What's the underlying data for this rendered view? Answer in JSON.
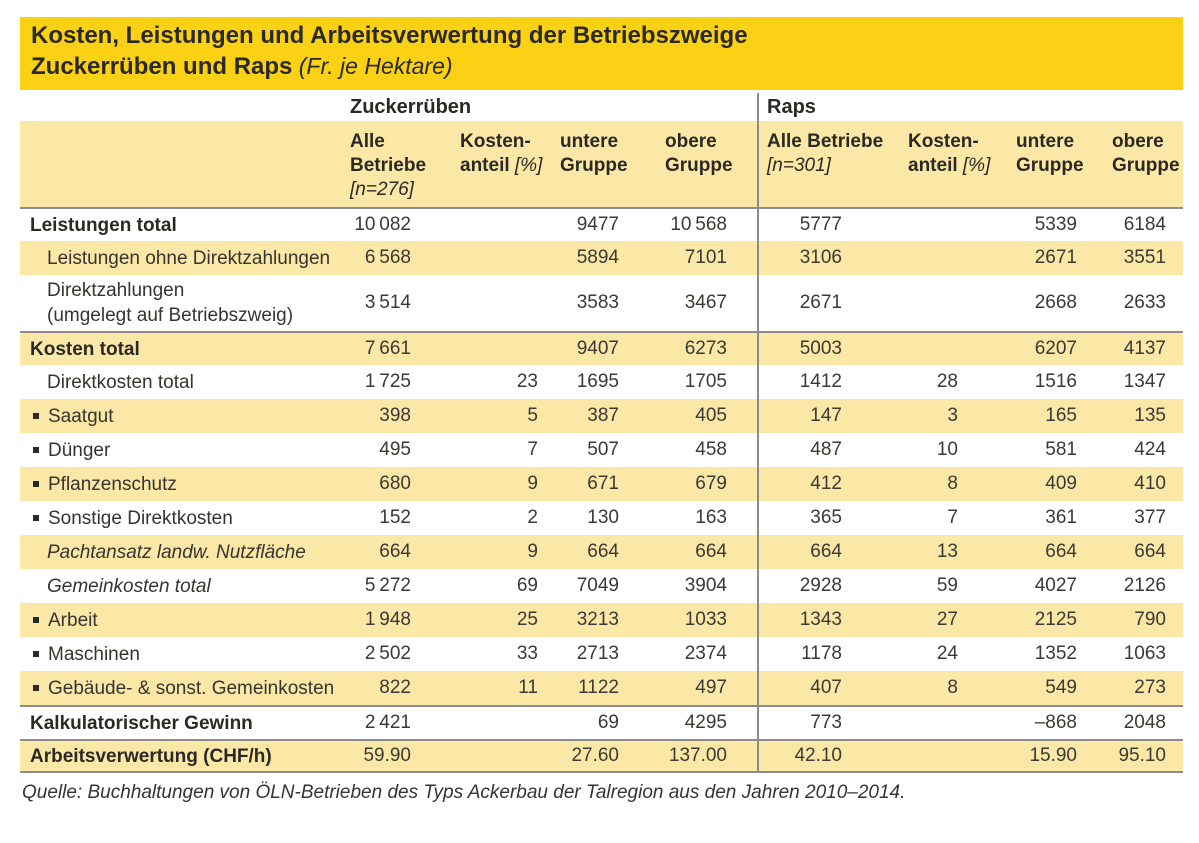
{
  "title": {
    "line1": "Kosten, Leistungen und Arbeitsverwertung der Betriebszweige",
    "line2_bold": "Zuckerrüben und Raps",
    "line2_italic": " (Fr. je Hektare)"
  },
  "groups": {
    "left": "Zuckerrüben",
    "right": "Raps"
  },
  "columns": [
    {
      "id": "zr_alle",
      "lines": [
        "Alle",
        "Betriebe",
        "[n=276]"
      ]
    },
    {
      "id": "zr_anteil",
      "lines": [
        "Kosten-",
        "anteil [%]"
      ]
    },
    {
      "id": "zr_untere",
      "lines": [
        "untere",
        "Gruppe"
      ]
    },
    {
      "id": "zr_obere",
      "lines": [
        "obere",
        "Gruppe"
      ]
    },
    {
      "id": "raps_alle",
      "lines": [
        "Alle Betriebe",
        "[n=301]"
      ]
    },
    {
      "id": "raps_anteil",
      "lines": [
        "Kosten-",
        "anteil [%]"
      ]
    },
    {
      "id": "raps_untere",
      "lines": [
        "untere",
        "Gruppe"
      ]
    },
    {
      "id": "raps_obere",
      "lines": [
        "obere",
        "Gruppe"
      ]
    }
  ],
  "rows": [
    {
      "label": "Leistungen total",
      "style": "bold",
      "values": [
        "10 082",
        "",
        "9477",
        "10 568",
        "5777",
        "",
        "5339",
        "6184"
      ]
    },
    {
      "label": "Leistungen ohne Direktzahlungen",
      "style": "sub",
      "values": [
        "6 568",
        "",
        "5894",
        "7101",
        "3106",
        "",
        "2671",
        "3551"
      ]
    },
    {
      "label": "Direktzahlungen",
      "label2": "(umgelegt auf Betriebszweig)",
      "style": "sub",
      "tall": true,
      "values": [
        "3 514",
        "",
        "3583",
        "3467",
        "2671",
        "",
        "2668",
        "2633"
      ]
    },
    {
      "label": "Kosten total",
      "style": "bold",
      "values": [
        "7 661",
        "",
        "9407",
        "6273",
        "5003",
        "",
        "6207",
        "4137"
      ]
    },
    {
      "label": "Direktkosten total",
      "style": "sub",
      "values": [
        "1 725",
        "23",
        "1695",
        "1705",
        "1412",
        "28",
        "1516",
        "1347"
      ]
    },
    {
      "label": "Saatgut",
      "style": "bullet",
      "values": [
        "398",
        "5",
        "387",
        "405",
        "147",
        "3",
        "165",
        "135"
      ]
    },
    {
      "label": "Dünger",
      "style": "bullet",
      "values": [
        "495",
        "7",
        "507",
        "458",
        "487",
        "10",
        "581",
        "424"
      ]
    },
    {
      "label": "Pflanzenschutz",
      "style": "bullet",
      "values": [
        "680",
        "9",
        "671",
        "679",
        "412",
        "8",
        "409",
        "410"
      ]
    },
    {
      "label": "Sonstige Direktkosten",
      "style": "bullet",
      "values": [
        "152",
        "2",
        "130",
        "163",
        "365",
        "7",
        "361",
        "377"
      ]
    },
    {
      "label": "Pachtansatz landw. Nutzfläche",
      "style": "italic",
      "values": [
        "664",
        "9",
        "664",
        "664",
        "664",
        "13",
        "664",
        "664"
      ]
    },
    {
      "label": "Gemeinkosten total",
      "style": "italic",
      "values": [
        "5 272",
        "69",
        "7049",
        "3904",
        "2928",
        "59",
        "4027",
        "2126"
      ]
    },
    {
      "label": "Arbeit",
      "style": "bullet",
      "values": [
        "1 948",
        "25",
        "3213",
        "1033",
        "1343",
        "27",
        "2125",
        "790"
      ]
    },
    {
      "label": "Maschinen",
      "style": "bullet",
      "values": [
        "2 502",
        "33",
        "2713",
        "2374",
        "1178",
        "24",
        "1352",
        "1063"
      ]
    },
    {
      "label": "Gebäude- & sonst. Gemeinkosten",
      "style": "bullet",
      "values": [
        "822",
        "11",
        "1122",
        "497",
        "407",
        "8",
        "549",
        "273"
      ]
    },
    {
      "label": "Kalkulatorischer Gewinn",
      "style": "bold",
      "values": [
        "2 421",
        "",
        "69",
        "4295",
        "773",
        "",
        "–868",
        "2048"
      ]
    },
    {
      "label": "Arbeitsverwertung (CHF/h)",
      "style": "bold",
      "values": [
        "59.90",
        "",
        "27.60",
        "137.00",
        "42.10",
        "",
        "15.90",
        "95.10"
      ]
    }
  ],
  "source": "Quelle: Buchhaltungen von ÖLN-Betrieben des Typs Ackerbau der Talregion aus den Jahren 2010–2014.",
  "colors": {
    "title_bar": "#FBD116",
    "row_band": "#FBE8A6",
    "line_gray": "#8C8C8C",
    "text": "#363430"
  }
}
